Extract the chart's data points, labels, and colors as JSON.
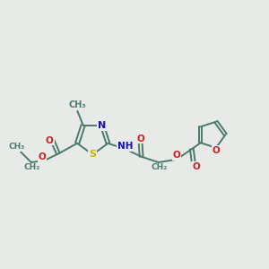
{
  "background_color": "#e8eae8",
  "bond_color": "#4a7a6a",
  "figsize": [
    3.0,
    3.0
  ],
  "dpi": 100,
  "atom_colors": {
    "S": "#c8b400",
    "N": "#1010cc",
    "O": "#cc2020",
    "C": "#4a7a6a"
  },
  "xlim": [
    0,
    14
  ],
  "ylim": [
    2,
    10
  ]
}
